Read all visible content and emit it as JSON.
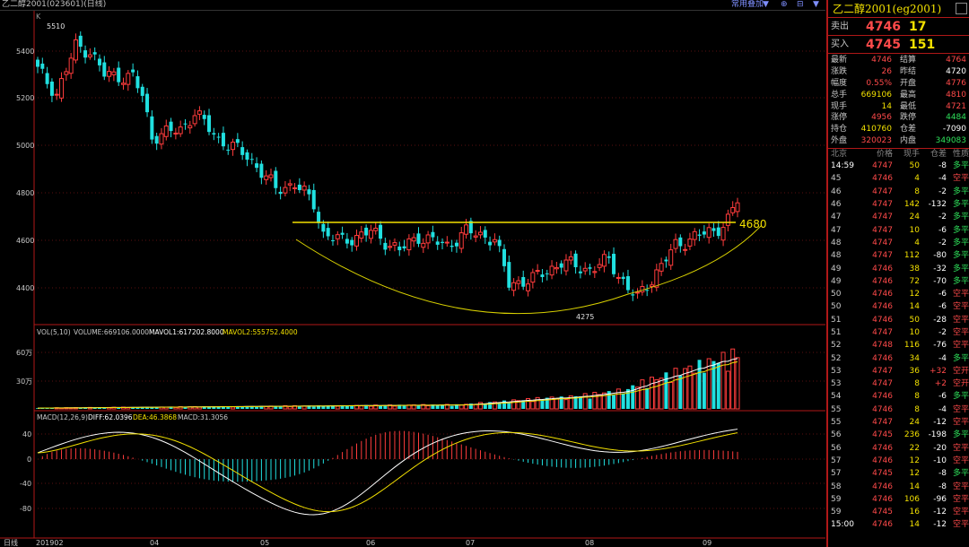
{
  "window": {
    "title": "乙二醇2001(023601)(日线)",
    "menu": [
      "常用叠加",
      "▼",
      "⊕",
      "⊟",
      "▼"
    ]
  },
  "kline": {
    "label": "K",
    "y_ticks": [
      "5400",
      "5200",
      "5000",
      "4800",
      "4600",
      "4400"
    ],
    "hi_mark": "5510",
    "lo_mark": "4275",
    "level_label": "4680"
  },
  "vol": {
    "legend_prefix": "VOL(5,10)",
    "vol": "VOLUME:669106.0000",
    "ma1": "MAVOL1:617202.8000",
    "ma2": "MAVOL2:555752.4000",
    "y_ticks": [
      "60万",
      "30万"
    ]
  },
  "macd": {
    "legend_prefix": "MACD(12,26,9)",
    "diff": "DIFF:62.0396",
    "dea": "DEA:46.3868",
    "macd": "MACD:31.3056",
    "y_ticks": [
      "40",
      "0",
      "-40",
      "-80"
    ]
  },
  "xaxis": {
    "period": "日线",
    "ticks": [
      "201902",
      "04",
      "05",
      "06",
      "07",
      "08",
      "09"
    ]
  },
  "colors": {
    "up": "#ff3c3c",
    "down": "#20e0e0",
    "level": "#f2e000",
    "curve": "#d8d000",
    "ma_white": "#ffffff",
    "ma_yellow": "#f2e000"
  },
  "panel": {
    "title": "乙二醇2001(eg2001)",
    "sell_label": "卖出",
    "sell_price": "4746",
    "sell_vol": "17",
    "buy_label": "买入",
    "buy_price": "4745",
    "buy_vol": "151",
    "quote": [
      {
        "k1": "最新",
        "v1": "4746",
        "k2": "结算",
        "v2": "4764"
      },
      {
        "k1": "涨跌",
        "v1": "26",
        "k2": "昨结",
        "v2": "4720"
      },
      {
        "k1": "幅度",
        "v1": "0.55%",
        "k2": "开盘",
        "v2": "4776"
      },
      {
        "k1": "总手",
        "v1": "669106",
        "k2": "最高",
        "v2": "4810"
      },
      {
        "k1": "现手",
        "v1": "14",
        "k2": "最低",
        "v2": "4721"
      },
      {
        "k1": "涨停",
        "v1": "4956",
        "k2": "跌停",
        "v2": "4484"
      },
      {
        "k1": "持仓",
        "v1": "410760",
        "k2": "仓差",
        "v2": "-7090"
      },
      {
        "k1": "外盘",
        "v1": "320023",
        "k2": "内盘",
        "v2": "349083"
      }
    ],
    "ticks_header": [
      "北京",
      "价格",
      "现手",
      "仓差",
      "性质"
    ],
    "ticks": [
      [
        "14:59",
        "4747",
        "50",
        "-8",
        "多平"
      ],
      [
        "45",
        "4746",
        "4",
        "-4",
        "空平"
      ],
      [
        "46",
        "4747",
        "8",
        "-2",
        "多平"
      ],
      [
        "46",
        "4747",
        "142",
        "-132",
        "多平"
      ],
      [
        "47",
        "4747",
        "24",
        "-2",
        "多平"
      ],
      [
        "47",
        "4747",
        "10",
        "-6",
        "多平"
      ],
      [
        "48",
        "4747",
        "4",
        "-2",
        "多平"
      ],
      [
        "48",
        "4747",
        "112",
        "-80",
        "多平"
      ],
      [
        "49",
        "4746",
        "38",
        "-32",
        "多平"
      ],
      [
        "49",
        "4746",
        "72",
        "-70",
        "多平"
      ],
      [
        "50",
        "4746",
        "12",
        "-6",
        "空平"
      ],
      [
        "50",
        "4746",
        "14",
        "-6",
        "空平"
      ],
      [
        "51",
        "4746",
        "50",
        "-28",
        "空平"
      ],
      [
        "51",
        "4747",
        "10",
        "-2",
        "空平"
      ],
      [
        "52",
        "4748",
        "116",
        "-76",
        "空平"
      ],
      [
        "52",
        "4746",
        "34",
        "-4",
        "多平"
      ],
      [
        "53",
        "4747",
        "36",
        "+32",
        "空开"
      ],
      [
        "53",
        "4747",
        "8",
        "+2",
        "空开"
      ],
      [
        "54",
        "4746",
        "8",
        "-6",
        "多平"
      ],
      [
        "55",
        "4746",
        "8",
        "-4",
        "空平"
      ],
      [
        "55",
        "4747",
        "24",
        "-12",
        "空平"
      ],
      [
        "56",
        "4745",
        "236",
        "-198",
        "多平"
      ],
      [
        "56",
        "4746",
        "22",
        "-20",
        "空平"
      ],
      [
        "57",
        "4746",
        "12",
        "-10",
        "空平"
      ],
      [
        "57",
        "4745",
        "12",
        "-8",
        "多平"
      ],
      [
        "58",
        "4746",
        "14",
        "-8",
        "空平"
      ],
      [
        "59",
        "4746",
        "106",
        "-96",
        "空平"
      ],
      [
        "59",
        "4745",
        "16",
        "-12",
        "空平"
      ],
      [
        "15:00",
        "4746",
        "14",
        "-12",
        "空平"
      ]
    ]
  }
}
